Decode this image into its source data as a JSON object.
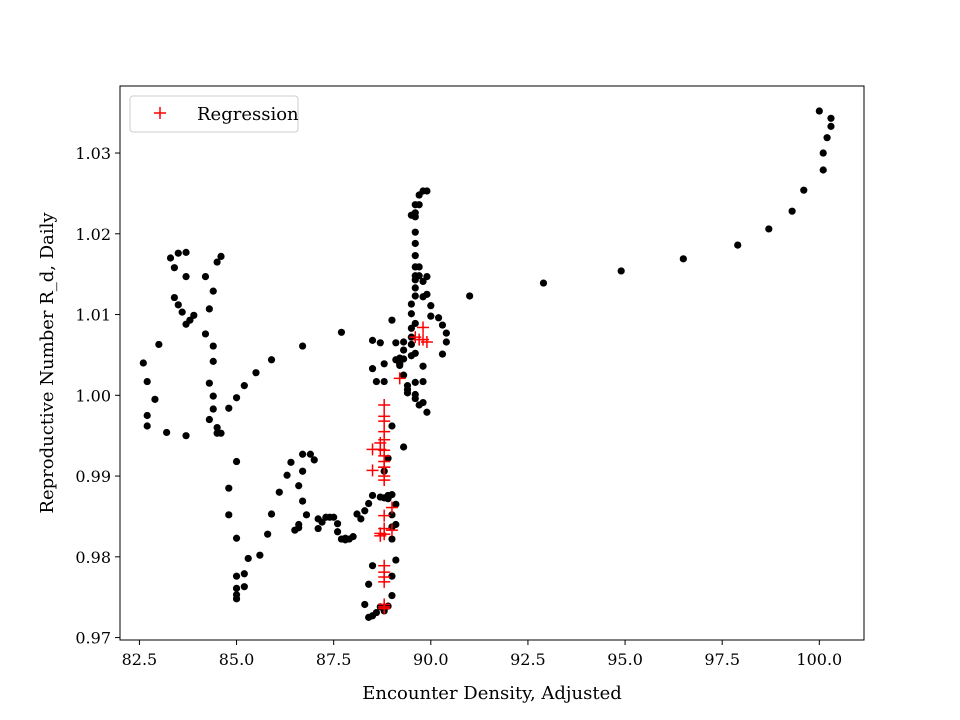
{
  "chart_data": {
    "type": "scatter",
    "xlabel": "Encounter Density, Adjusted",
    "ylabel": "Reproductive Number R_d, Daily",
    "xlim": [
      82.0,
      101.15
    ],
    "ylim": [
      0.9697,
      1.0383
    ],
    "xticks": [
      82.5,
      85.0,
      87.5,
      90.0,
      92.5,
      95.0,
      97.5,
      100.0
    ],
    "yticks": [
      0.97,
      0.98,
      0.99,
      1.0,
      1.01,
      1.02,
      1.03
    ],
    "xtick_labels": [
      "82.5",
      "85.0",
      "87.5",
      "90.0",
      "92.5",
      "95.0",
      "97.5",
      "100.0"
    ],
    "ytick_labels": [
      "0.97",
      "0.98",
      "0.99",
      "1.00",
      "1.01",
      "1.02",
      "1.03"
    ],
    "grid": false,
    "legend": {
      "position": "top-left",
      "entries": [
        "Regression"
      ]
    },
    "series": [
      {
        "marker": "dot",
        "color": "#000000",
        "points": [
          [
            82.6,
            1.004
          ],
          [
            82.7,
            1.0017
          ],
          [
            82.9,
            0.9995
          ],
          [
            82.7,
            0.9975
          ],
          [
            82.7,
            0.9962
          ],
          [
            83.2,
            0.9954
          ],
          [
            83.0,
            1.0063
          ],
          [
            83.3,
            1.017
          ],
          [
            83.4,
            1.0158
          ],
          [
            83.5,
            1.0176
          ],
          [
            83.7,
            1.0177
          ],
          [
            83.4,
            1.0121
          ],
          [
            83.5,
            1.0112
          ],
          [
            83.6,
            1.0103
          ],
          [
            83.7,
            1.0088
          ],
          [
            83.8,
            1.0093
          ],
          [
            83.9,
            1.0099
          ],
          [
            83.7,
            1.0147
          ],
          [
            83.7,
            0.995
          ],
          [
            84.2,
            1.0147
          ],
          [
            84.2,
            1.0076
          ],
          [
            84.3,
            1.0107
          ],
          [
            84.4,
            1.0129
          ],
          [
            84.5,
            1.0165
          ],
          [
            84.6,
            1.0172
          ],
          [
            84.4,
            1.0061
          ],
          [
            84.4,
            1.0042
          ],
          [
            84.3,
            1.0015
          ],
          [
            84.4,
            0.9999
          ],
          [
            84.4,
            0.9983
          ],
          [
            84.3,
            0.997
          ],
          [
            84.5,
            0.996
          ],
          [
            84.5,
            0.9953
          ],
          [
            84.6,
            0.9953
          ],
          [
            84.8,
            0.9984
          ],
          [
            85.0,
            0.9997
          ],
          [
            85.2,
            1.0012
          ],
          [
            85.5,
            1.0028
          ],
          [
            85.9,
            1.0044
          ],
          [
            84.8,
            0.9885
          ],
          [
            84.8,
            0.9852
          ],
          [
            85.0,
            0.9918
          ],
          [
            85.0,
            0.9823
          ],
          [
            85.0,
            0.9776
          ],
          [
            85.0,
            0.9761
          ],
          [
            85.0,
            0.9753
          ],
          [
            85.0,
            0.9748
          ],
          [
            85.2,
            0.9779
          ],
          [
            85.3,
            0.9798
          ],
          [
            85.2,
            0.9763
          ],
          [
            85.6,
            0.9802
          ],
          [
            85.8,
            0.9828
          ],
          [
            85.9,
            0.9853
          ],
          [
            86.1,
            0.988
          ],
          [
            86.3,
            0.9901
          ],
          [
            86.4,
            0.9917
          ],
          [
            86.5,
            0.9833
          ],
          [
            86.6,
            0.9836
          ],
          [
            86.6,
            0.984
          ],
          [
            86.6,
            0.9888
          ],
          [
            86.7,
            0.9906
          ],
          [
            86.7,
            0.9927
          ],
          [
            86.7,
            0.9869
          ],
          [
            86.8,
            0.9852
          ],
          [
            86.9,
            0.9927
          ],
          [
            87.0,
            0.992
          ],
          [
            87.1,
            0.9835
          ],
          [
            87.1,
            0.9847
          ],
          [
            87.2,
            0.9843
          ],
          [
            87.3,
            0.9849
          ],
          [
            87.4,
            0.9849
          ],
          [
            87.5,
            0.9849
          ],
          [
            87.6,
            0.9841
          ],
          [
            87.6,
            0.9831
          ],
          [
            87.7,
            0.9822
          ],
          [
            87.8,
            0.9821
          ],
          [
            87.8,
            0.9823
          ],
          [
            87.9,
            0.9822
          ],
          [
            88.0,
            0.9825
          ],
          [
            87.7,
            1.0078
          ],
          [
            86.7,
            1.0061
          ],
          [
            88.1,
            0.9853
          ],
          [
            88.2,
            0.9847
          ],
          [
            88.3,
            0.9857
          ],
          [
            88.4,
            0.9866
          ],
          [
            88.5,
            0.9876
          ],
          [
            88.3,
            0.9741
          ],
          [
            88.4,
            0.9725
          ],
          [
            88.5,
            0.9727
          ],
          [
            88.6,
            0.9731
          ],
          [
            88.7,
            0.9738
          ],
          [
            88.5,
            0.9789
          ],
          [
            88.4,
            0.9766
          ],
          [
            88.5,
            1.0068
          ],
          [
            88.5,
            1.0033
          ],
          [
            88.6,
            1.0017
          ],
          [
            88.7,
            1.0065
          ],
          [
            88.8,
            1.0039
          ],
          [
            88.8,
            1.0017
          ],
          [
            88.7,
            0.9874
          ],
          [
            88.8,
            0.9873
          ],
          [
            88.9,
            0.9876
          ],
          [
            88.9,
            0.9872
          ],
          [
            89.0,
            0.9877
          ],
          [
            89.0,
            0.9852
          ],
          [
            89.0,
            0.9837
          ],
          [
            89.0,
            0.9822
          ],
          [
            89.1,
            0.9865
          ],
          [
            89.1,
            0.984
          ],
          [
            89.0,
            0.9752
          ],
          [
            89.0,
            0.9776
          ],
          [
            89.1,
            0.9796
          ],
          [
            88.9,
            0.9739
          ],
          [
            88.8,
            0.9733
          ],
          [
            88.8,
            0.9906
          ],
          [
            88.9,
            0.9922
          ],
          [
            89.0,
            0.9962
          ],
          [
            89.0,
            1.0093
          ],
          [
            89.1,
            1.0065
          ],
          [
            89.2,
            1.0039
          ],
          [
            89.2,
            1.0046
          ],
          [
            89.3,
            1.0056
          ],
          [
            89.3,
            1.0066
          ],
          [
            89.3,
            1.0045
          ],
          [
            89.3,
            1.0025
          ],
          [
            89.4,
            1.0007
          ],
          [
            89.4,
            1.0003
          ],
          [
            89.4,
            1.0012
          ],
          [
            89.3,
            0.9936
          ],
          [
            89.2,
            1.0037
          ],
          [
            89.1,
            1.0044
          ],
          [
            89.5,
            1.0072
          ],
          [
            89.5,
            1.0083
          ],
          [
            89.5,
            1.0063
          ],
          [
            89.5,
            1.0049
          ],
          [
            89.6,
            1.0052
          ],
          [
            89.5,
            1.0101
          ],
          [
            89.5,
            1.0113
          ],
          [
            89.6,
            1.0123
          ],
          [
            89.6,
            1.0133
          ],
          [
            89.6,
            1.0143
          ],
          [
            89.6,
            1.0148
          ],
          [
            89.6,
            1.0159
          ],
          [
            89.6,
            1.0173
          ],
          [
            89.6,
            1.0188
          ],
          [
            89.6,
            1.0202
          ],
          [
            89.6,
            1.0221
          ],
          [
            89.6,
            1.0226
          ],
          [
            89.5,
            1.0223
          ],
          [
            89.6,
            1.0236
          ],
          [
            89.7,
            1.0236
          ],
          [
            89.7,
            1.0248
          ],
          [
            89.8,
            1.0253
          ],
          [
            89.9,
            1.0253
          ],
          [
            89.8,
            1.0141
          ],
          [
            89.8,
            1.0122
          ],
          [
            89.7,
            1.0159
          ],
          [
            89.7,
            1.0148
          ],
          [
            89.8,
            1.0036
          ],
          [
            89.8,
            1.0017
          ],
          [
            89.7,
            0.9988
          ],
          [
            89.8,
            0.9991
          ],
          [
            89.9,
            0.9979
          ],
          [
            89.6,
            0.9996
          ],
          [
            89.6,
            1.0001
          ],
          [
            89.6,
            1.0016
          ],
          [
            89.6,
            1.0089
          ],
          [
            89.9,
            1.0125
          ],
          [
            90.0,
            1.0111
          ],
          [
            90.0,
            1.0098
          ],
          [
            90.2,
            1.0096
          ],
          [
            90.3,
            1.0087
          ],
          [
            90.4,
            1.0077
          ],
          [
            90.4,
            1.0066
          ],
          [
            90.3,
            1.0051
          ],
          [
            89.9,
            1.0147
          ],
          [
            91.0,
            1.0123
          ],
          [
            92.9,
            1.0139
          ],
          [
            94.9,
            1.0154
          ],
          [
            96.5,
            1.0169
          ],
          [
            97.9,
            1.0186
          ],
          [
            98.7,
            1.0206
          ],
          [
            99.3,
            1.0228
          ],
          [
            99.6,
            1.0254
          ],
          [
            100.1,
            1.0279
          ],
          [
            100.1,
            1.03
          ],
          [
            100.2,
            1.0319
          ],
          [
            100.3,
            1.0333
          ],
          [
            100.3,
            1.0343
          ],
          [
            100.0,
            1.0352
          ]
        ]
      },
      {
        "name": "Regression",
        "marker": "plus",
        "color": "#ff0000",
        "points": [
          [
            88.5,
            0.9933
          ],
          [
            88.5,
            0.9907
          ],
          [
            88.7,
            0.9941
          ],
          [
            88.8,
            0.9925
          ],
          [
            88.8,
            0.9918
          ],
          [
            88.8,
            0.9911
          ],
          [
            88.8,
            0.99
          ],
          [
            88.8,
            0.9945
          ],
          [
            88.8,
            0.9955
          ],
          [
            88.8,
            0.9968
          ],
          [
            88.8,
            0.9974
          ],
          [
            88.8,
            0.9988
          ],
          [
            88.7,
            0.9933
          ],
          [
            88.8,
            0.9932
          ],
          [
            88.8,
            0.9911
          ],
          [
            88.8,
            0.9895
          ],
          [
            88.8,
            0.9851
          ],
          [
            88.7,
            0.9829
          ],
          [
            88.7,
            0.9826
          ],
          [
            88.8,
            0.9828
          ],
          [
            88.8,
            0.9835
          ],
          [
            89.0,
            0.9833
          ],
          [
            89.0,
            0.9861
          ],
          [
            88.8,
            0.9781
          ],
          [
            88.8,
            0.9775
          ],
          [
            88.8,
            0.9769
          ],
          [
            88.8,
            0.9789
          ],
          [
            88.8,
            0.9741
          ],
          [
            88.8,
            0.9738
          ],
          [
            88.8,
            0.9736
          ],
          [
            89.2,
            1.0021
          ],
          [
            89.7,
            1.0069
          ],
          [
            89.8,
            1.0069
          ],
          [
            89.8,
            1.0084
          ],
          [
            89.9,
            1.0066
          ],
          [
            89.6,
            1.0072
          ]
        ]
      }
    ]
  }
}
